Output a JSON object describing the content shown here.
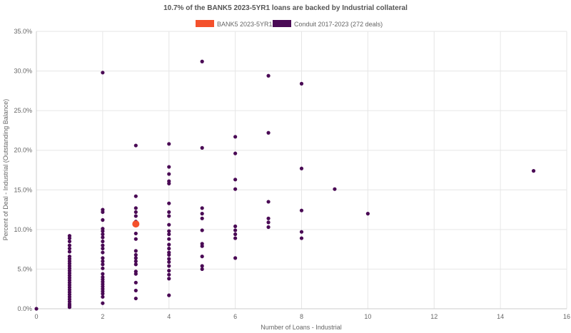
{
  "chart_data": {
    "type": "scatter",
    "title": "10.7% of the BANK5 2023-5YR1 loans are backed by Industrial collateral",
    "xlabel": "Number of Loans - Industrial",
    "ylabel": "Percent of Deal - Industrial (Outstanding Balance)",
    "xlim": [
      0,
      16
    ],
    "ylim": [
      0,
      35
    ],
    "x_ticks": [
      0,
      2,
      4,
      6,
      8,
      10,
      12,
      14,
      16
    ],
    "y_ticks": [
      0,
      5,
      10,
      15,
      20,
      25,
      30,
      35
    ],
    "y_tick_labels": [
      "0.0%",
      "5.0%",
      "10.0%",
      "15.0%",
      "20.0%",
      "25.0%",
      "30.0%",
      "35.0%"
    ],
    "grid": true,
    "legend_position": "top-center",
    "series": [
      {
        "name": "BANK5 2023-5YR1",
        "color": "#f4512c",
        "points": [
          [
            3,
            10.7
          ]
        ]
      },
      {
        "name": "Conduit 2017-2023 (272 deals)",
        "color": "#4a0a55",
        "points": [
          [
            0,
            0.0
          ],
          [
            1,
            0.2
          ],
          [
            1,
            0.4
          ],
          [
            1,
            0.6
          ],
          [
            1,
            0.9
          ],
          [
            1,
            1.2
          ],
          [
            1,
            1.5
          ],
          [
            1,
            1.8
          ],
          [
            1,
            2.1
          ],
          [
            1,
            2.4
          ],
          [
            1,
            2.7
          ],
          [
            1,
            3.0
          ],
          [
            1,
            3.3
          ],
          [
            1,
            3.6
          ],
          [
            1,
            3.9
          ],
          [
            1,
            4.2
          ],
          [
            1,
            4.5
          ],
          [
            1,
            4.8
          ],
          [
            1,
            5.1
          ],
          [
            1,
            5.4
          ],
          [
            1,
            5.7
          ],
          [
            1,
            6.0
          ],
          [
            1,
            6.3
          ],
          [
            1,
            6.6
          ],
          [
            1,
            7.2
          ],
          [
            1,
            7.6
          ],
          [
            1,
            8.0
          ],
          [
            1,
            8.5
          ],
          [
            1,
            8.9
          ],
          [
            1,
            9.2
          ],
          [
            2,
            0.7
          ],
          [
            2,
            1.5
          ],
          [
            2,
            1.9
          ],
          [
            2,
            2.2
          ],
          [
            2,
            2.5
          ],
          [
            2,
            2.8
          ],
          [
            2,
            3.1
          ],
          [
            2,
            3.4
          ],
          [
            2,
            3.7
          ],
          [
            2,
            4.0
          ],
          [
            2,
            4.4
          ],
          [
            2,
            5.1
          ],
          [
            2,
            5.6
          ],
          [
            2,
            6.0
          ],
          [
            2,
            6.4
          ],
          [
            2,
            7.1
          ],
          [
            2,
            7.6
          ],
          [
            2,
            8.0
          ],
          [
            2,
            8.5
          ],
          [
            2,
            9.0
          ],
          [
            2,
            9.4
          ],
          [
            2,
            9.8
          ],
          [
            2,
            10.1
          ],
          [
            2,
            11.2
          ],
          [
            2,
            12.2
          ],
          [
            2,
            12.5
          ],
          [
            2,
            29.8
          ],
          [
            3,
            1.3
          ],
          [
            3,
            2.3
          ],
          [
            3,
            3.3
          ],
          [
            3,
            4.4
          ],
          [
            3,
            4.7
          ],
          [
            3,
            5.6
          ],
          [
            3,
            6.0
          ],
          [
            3,
            6.4
          ],
          [
            3,
            6.8
          ],
          [
            3,
            7.3
          ],
          [
            3,
            8.8
          ],
          [
            3,
            9.5
          ],
          [
            3,
            11.0
          ],
          [
            3,
            11.7
          ],
          [
            3,
            12.2
          ],
          [
            3,
            12.7
          ],
          [
            3,
            14.2
          ],
          [
            3,
            20.6
          ],
          [
            4,
            1.7
          ],
          [
            4,
            3.8
          ],
          [
            4,
            4.3
          ],
          [
            4,
            4.8
          ],
          [
            4,
            5.4
          ],
          [
            4,
            5.9
          ],
          [
            4,
            6.3
          ],
          [
            4,
            6.8
          ],
          [
            4,
            7.1
          ],
          [
            4,
            7.6
          ],
          [
            4,
            8.1
          ],
          [
            4,
            8.8
          ],
          [
            4,
            9.4
          ],
          [
            4,
            9.8
          ],
          [
            4,
            10.6
          ],
          [
            4,
            11.7
          ],
          [
            4,
            12.2
          ],
          [
            4,
            13.3
          ],
          [
            4,
            15.8
          ],
          [
            4,
            16.1
          ],
          [
            4,
            17.0
          ],
          [
            4,
            17.9
          ],
          [
            4,
            20.8
          ],
          [
            5,
            5.0
          ],
          [
            5,
            5.4
          ],
          [
            5,
            6.6
          ],
          [
            5,
            7.9
          ],
          [
            5,
            8.2
          ],
          [
            5,
            9.9
          ],
          [
            5,
            11.4
          ],
          [
            5,
            12.0
          ],
          [
            5,
            12.7
          ],
          [
            5,
            20.3
          ],
          [
            5,
            31.2
          ],
          [
            6,
            6.4
          ],
          [
            6,
            8.9
          ],
          [
            6,
            9.4
          ],
          [
            6,
            9.9
          ],
          [
            6,
            10.4
          ],
          [
            6,
            15.1
          ],
          [
            6,
            16.3
          ],
          [
            6,
            19.6
          ],
          [
            6,
            21.7
          ],
          [
            7,
            10.3
          ],
          [
            7,
            10.9
          ],
          [
            7,
            11.4
          ],
          [
            7,
            13.5
          ],
          [
            7,
            22.2
          ],
          [
            7,
            29.4
          ],
          [
            8,
            8.9
          ],
          [
            8,
            9.7
          ],
          [
            8,
            12.4
          ],
          [
            8,
            17.7
          ],
          [
            8,
            28.4
          ],
          [
            9,
            15.1
          ],
          [
            10,
            12.0
          ],
          [
            15,
            17.4
          ]
        ]
      }
    ]
  }
}
